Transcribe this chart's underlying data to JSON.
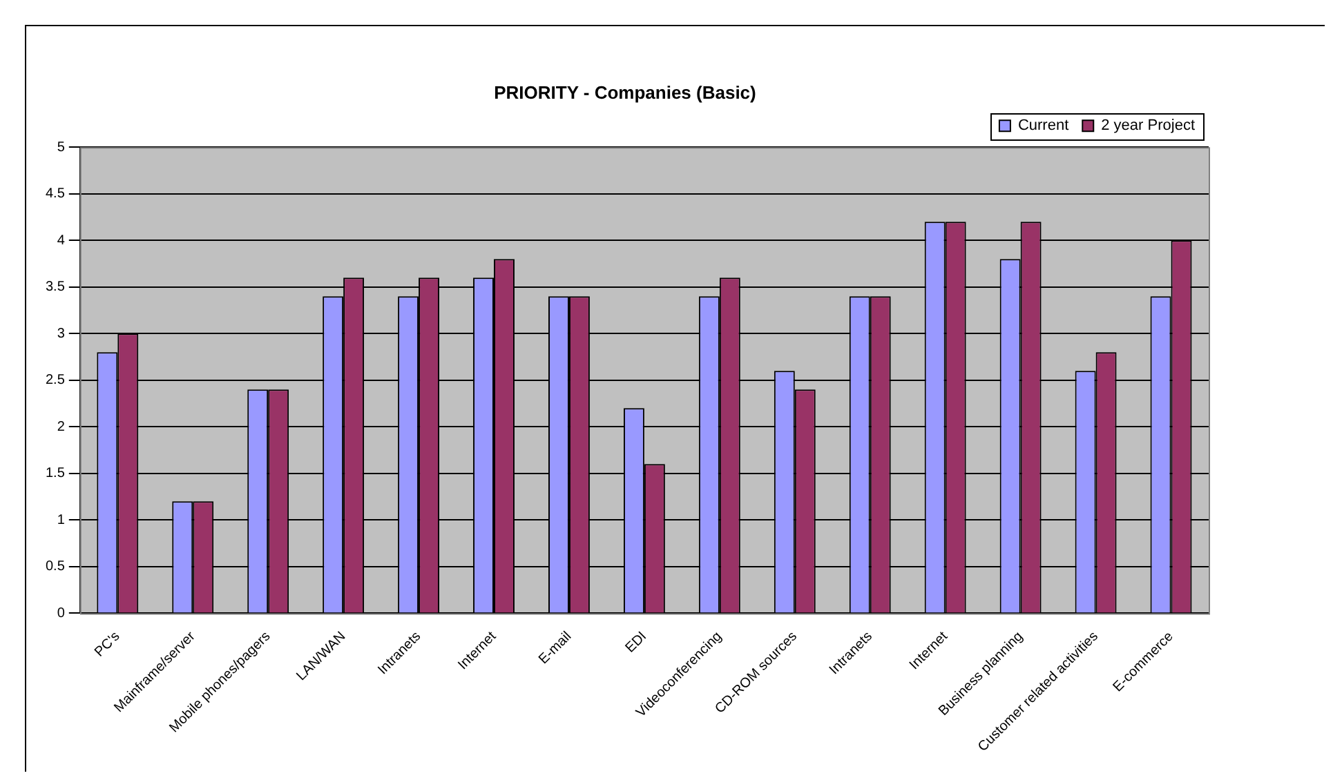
{
  "chart_data": {
    "type": "bar",
    "title": "PRIORITY - Companies (Basic)",
    "categories": [
      "PC's",
      "Mainframe/server",
      "Mobile phones/pagers",
      "LAN/WAN",
      "Intranets",
      "Internet",
      "E-mail",
      "EDI",
      "Videoconferencing",
      "CD-ROM sources",
      "Intranets",
      "Internet",
      "Business planning",
      "Customer related activities",
      "E-commerce"
    ],
    "series": [
      {
        "name": "Current",
        "color": "#9999ff",
        "values": [
          2.8,
          1.2,
          2.4,
          3.4,
          3.4,
          3.6,
          3.4,
          2.2,
          3.4,
          2.6,
          3.4,
          4.2,
          3.8,
          2.6,
          3.4
        ]
      },
      {
        "name": "2 year Project",
        "color": "#993366",
        "values": [
          3.0,
          1.2,
          2.4,
          3.6,
          3.6,
          3.8,
          3.4,
          1.6,
          3.6,
          2.4,
          3.4,
          4.2,
          4.2,
          2.8,
          4.0
        ]
      }
    ],
    "ylim": [
      0,
      5
    ],
    "yticks": [
      0,
      0.5,
      1,
      1.5,
      2,
      2.5,
      3,
      3.5,
      4,
      4.5,
      5
    ],
    "grid": "y",
    "legend": "top right"
  }
}
